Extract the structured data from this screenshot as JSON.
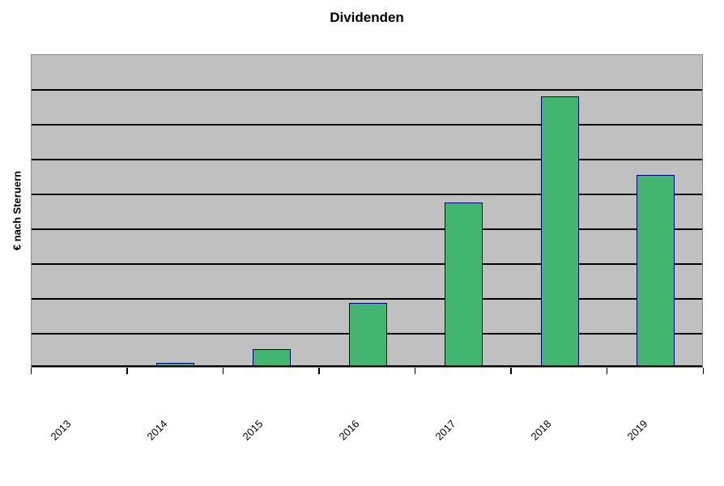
{
  "chart_data": {
    "type": "bar",
    "title": "Dividenden",
    "ylabel": "€ nach Steruern",
    "xlabel": "",
    "categories": [
      "2013",
      "2014",
      "2015",
      "2016",
      "2017",
      "2018",
      "2019"
    ],
    "values": [
      0,
      0.12,
      0.51,
      1.84,
      4.72,
      7.77,
      5.51
    ],
    "value_units": "gridline divisions (no numeric y-axis labels are shown on the chart)",
    "ylim": [
      0,
      9
    ],
    "y_divisions": 9,
    "y_tick_labels_shown": false,
    "grid": "horizontal",
    "legend": "none",
    "x_label_rotation_deg": 45
  },
  "colors": {
    "page_background": "#FFFFFF",
    "plot_background": "#C0C0C0",
    "plot_border": "#8A8A8A",
    "gridline": "#000000",
    "axis_line": "#000000",
    "tick": "#000000",
    "bar_fill": "#42B571",
    "bar_border": "#000080",
    "text": "#000000"
  }
}
